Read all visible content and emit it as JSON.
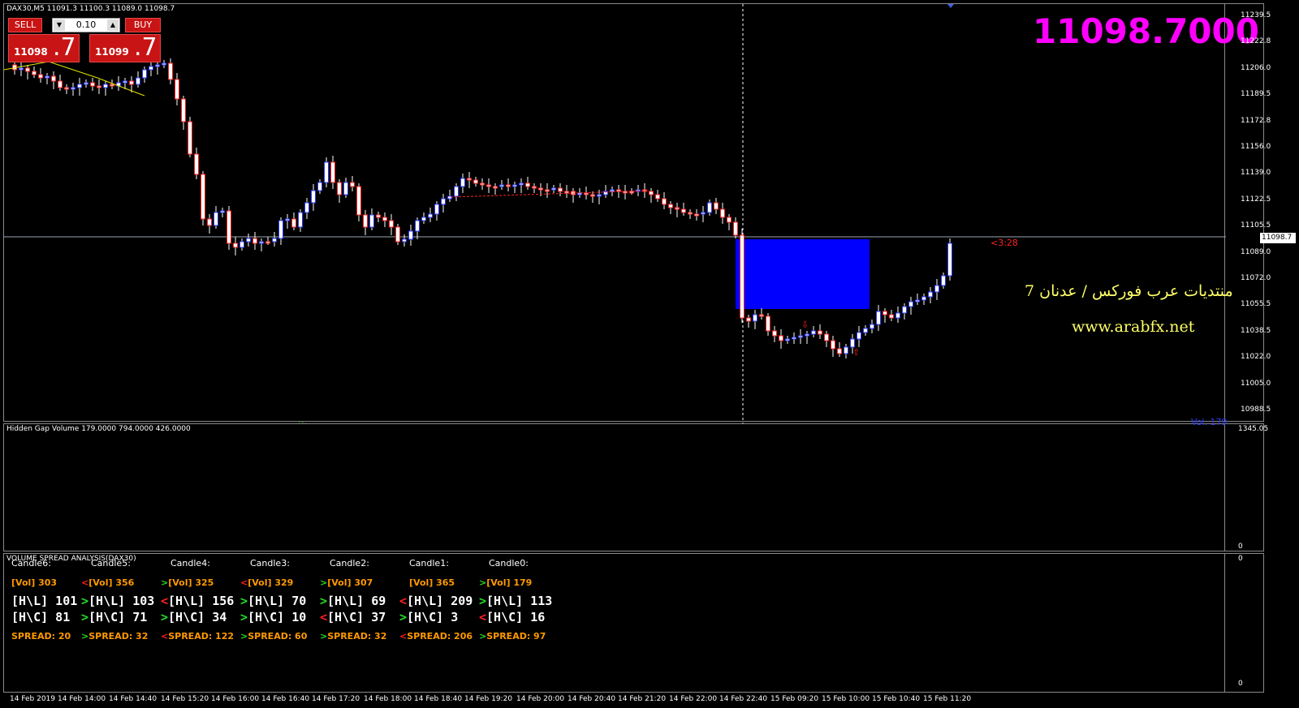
{
  "symbol_info": "DAX30,M5  11091.3 11100.3 11089.0 11098.7",
  "big_price": "11098.7000",
  "trade_panel": {
    "sell_label": "SELL",
    "buy_label": "BUY",
    "lot": "0.10",
    "sell_small": "11098",
    "sell_big": ".7",
    "buy_small": "11099",
    "buy_big": ".7"
  },
  "timer": "<3:28",
  "current_price_tag": "11098.7",
  "watermark": {
    "arabic": "منتديات عرب فوركس / عدنان 7",
    "url": "www.arabfx.net"
  },
  "price_axis": [
    "11239.5",
    "11222.8",
    "11206.0",
    "11189.5",
    "11172.8",
    "11156.0",
    "11139.0",
    "11122.5",
    "11105.5",
    "11089.0",
    "11072.0",
    "11055.5",
    "11038.5",
    "11022.0",
    "11005.0",
    "10988.5"
  ],
  "volume_indicator": {
    "label": "Hidden Gap Volume 179.0000 794.0000 426.0000",
    "vol_text": "Vol.  179",
    "axis_top": "1345.05",
    "axis_bottom": "0"
  },
  "vsa": {
    "title": "VOLUME SPREAD ANALYSIS(DAX30)",
    "axis_top": "0",
    "axis_bottom": "0",
    "candles": [
      {
        "name": "Candle6:",
        "vol": "303",
        "hl": "101",
        "hc": "81",
        "spread": "20",
        "vol_arrow": "",
        "hl_arrow": "",
        "hc_arrow": "",
        "sp_arrow": ""
      },
      {
        "name": "Candle5:",
        "vol": "356",
        "hl": "103",
        "hc": "71",
        "spread": "32",
        "vol_arrow": "<",
        "hl_arrow": ">",
        "hc_arrow": ">",
        "sp_arrow": ">"
      },
      {
        "name": "Candle4:",
        "vol": "325",
        "hl": "156",
        "hc": "34",
        "spread": "122",
        "vol_arrow": ">",
        "hl_arrow": "<",
        "hc_arrow": ">",
        "sp_arrow": "<"
      },
      {
        "name": "Candle3:",
        "vol": "329",
        "hl": "70",
        "hc": "10",
        "spread": "60",
        "vol_arrow": "<",
        "hl_arrow": ">",
        "hc_arrow": ">",
        "sp_arrow": ">"
      },
      {
        "name": "Candle2:",
        "vol": "307",
        "hl": "69",
        "hc": "37",
        "spread": "32",
        "vol_arrow": ">",
        "hl_arrow": ">",
        "hc_arrow": "<",
        "sp_arrow": ">"
      },
      {
        "name": "Candle1:",
        "vol": "365",
        "hl": "209",
        "hc": "3",
        "spread": "206",
        "vol_arrow": "",
        "hl_arrow": "<",
        "hc_arrow": ">",
        "sp_arrow": "<"
      },
      {
        "name": "Candle0:",
        "vol": "179",
        "hl": "113",
        "hc": "16",
        "spread": "97",
        "vol_arrow": ">",
        "hl_arrow": ">",
        "hc_arrow": "<",
        "sp_arrow": ">"
      }
    ],
    "labels": {
      "vol": "[Vol]",
      "hl": "[H\\L]",
      "hc": "[H\\C]",
      "spread": "SPREAD:"
    }
  },
  "time_axis": [
    "14 Feb 2019",
    "14 Feb 14:00",
    "14 Feb 14:40",
    "14 Feb 15:20",
    "14 Feb 16:00",
    "14 Feb 16:40",
    "14 Feb 17:20",
    "14 Feb 18:00",
    "14 Feb 18:40",
    "14 Feb 19:20",
    "14 Feb 20:00",
    "14 Feb 20:40",
    "14 Feb 21:20",
    "14 Feb 22:00",
    "14 Feb 22:40",
    "15 Feb 09:20",
    "15 Feb 10:00",
    "15 Feb 10:40",
    "15 Feb 11:20"
  ],
  "colors": {
    "bull_candle": "#2a3bff",
    "bear_candle": "#ff2020",
    "gap_box": "#0000ff",
    "big_price": "#ff00ff",
    "watermark": "#ffff66"
  }
}
